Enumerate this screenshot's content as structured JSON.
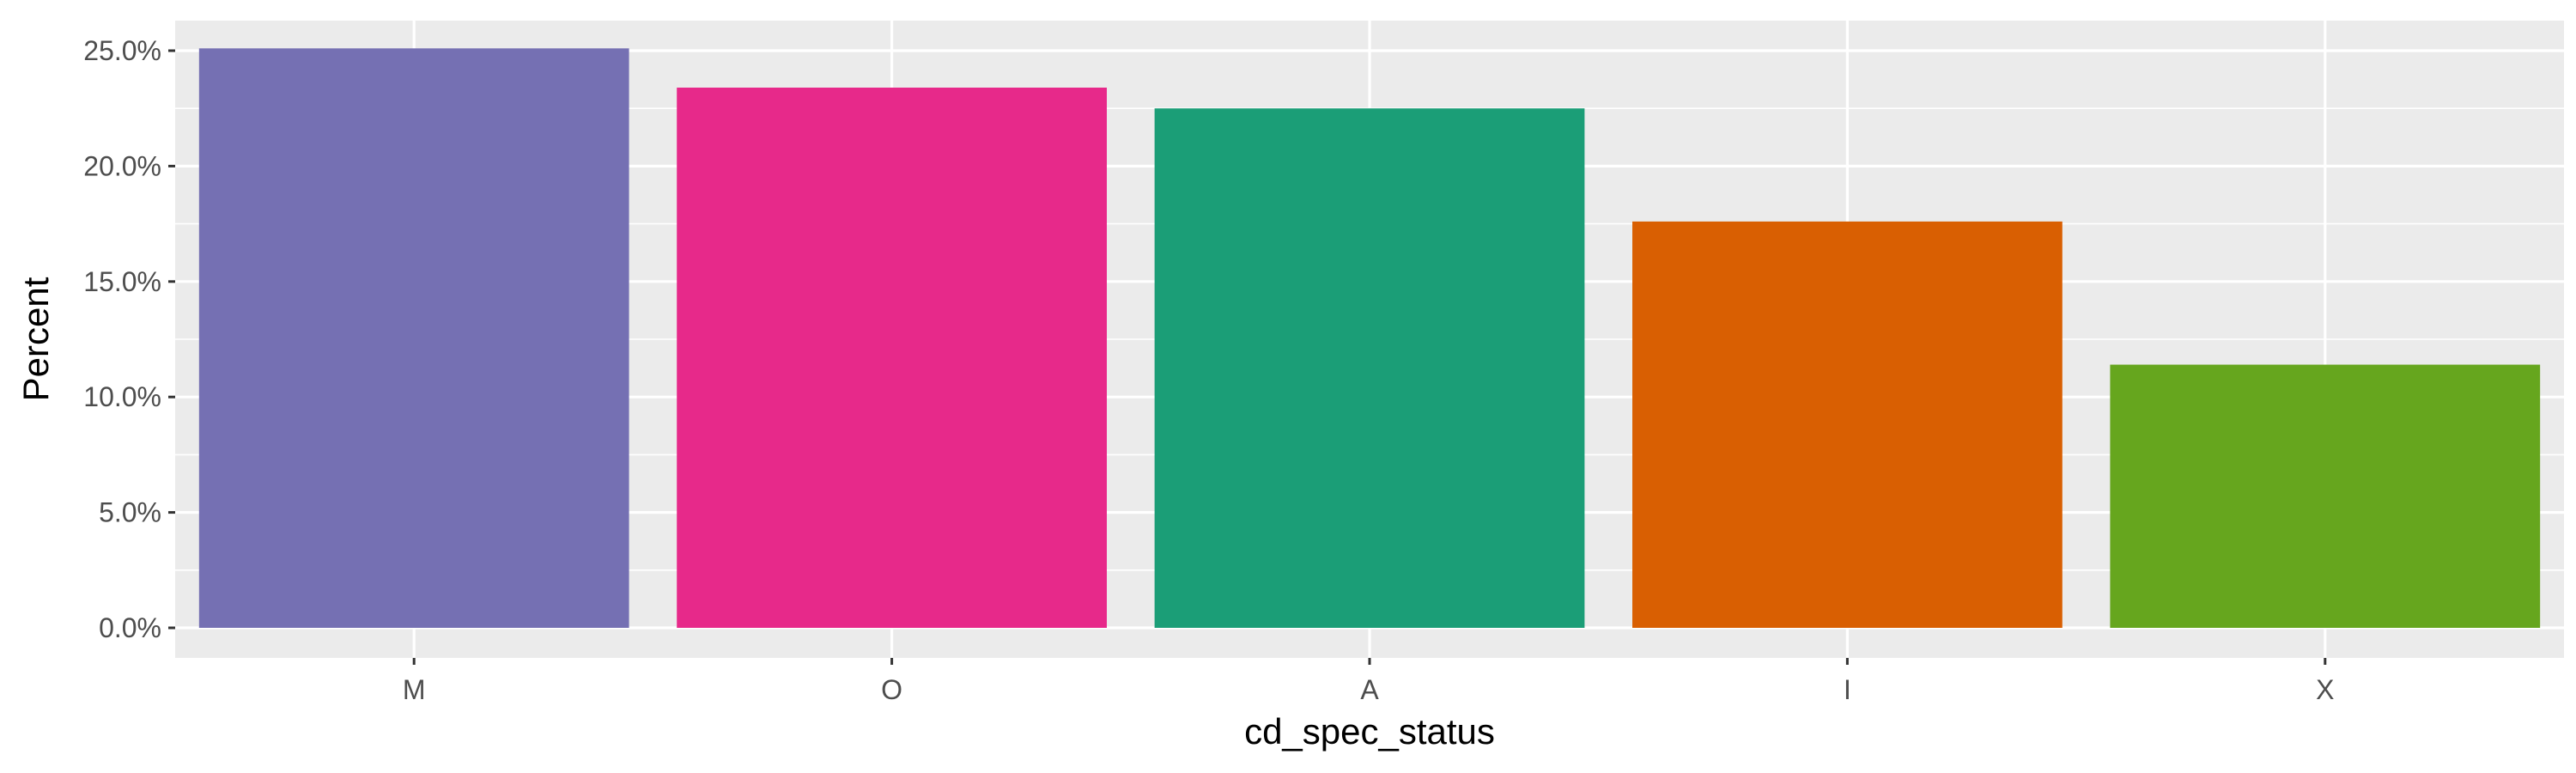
{
  "chart_data": {
    "type": "bar",
    "xlabel": "cd_spec_status",
    "ylabel": "Percent",
    "categories": [
      "M",
      "O",
      "A",
      "I",
      "X"
    ],
    "values": [
      25.1,
      23.4,
      22.5,
      17.6,
      11.4
    ],
    "colors": [
      "#7570B3",
      "#E7298A",
      "#1B9E77",
      "#D95F02",
      "#66A61E"
    ],
    "ylim": [
      0,
      26.1
    ],
    "yticks": [
      0,
      5,
      10,
      15,
      20,
      25
    ],
    "ytick_labels": [
      "0.0%",
      "5.0%",
      "10.0%",
      "15.0%",
      "20.0%",
      "25.0%"
    ],
    "grid": true,
    "legend": "none",
    "panel_background": "#EBEBEB",
    "grid_color": "#FFFFFF"
  }
}
